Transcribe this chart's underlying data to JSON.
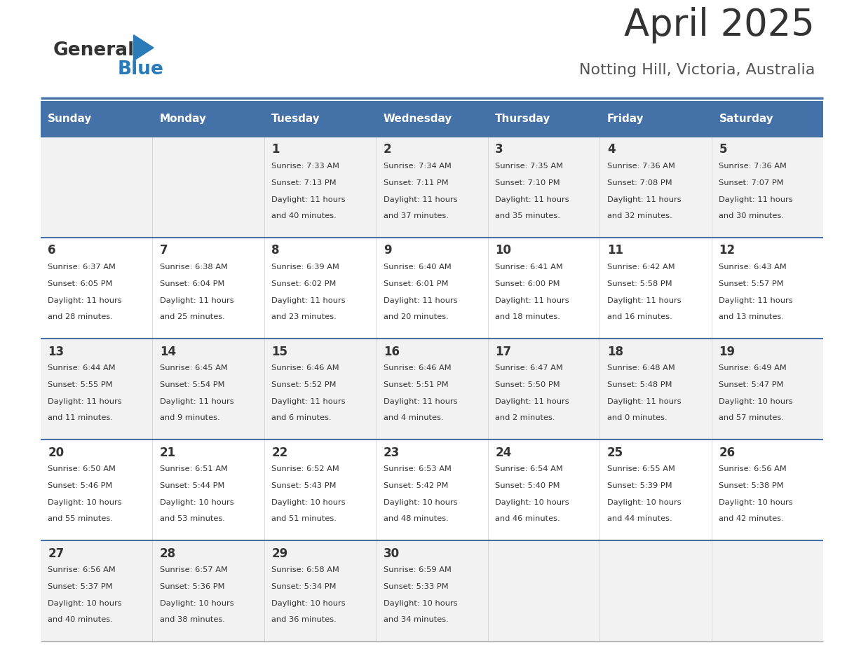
{
  "title": "April 2025",
  "subtitle": "Notting Hill, Victoria, Australia",
  "days_of_week": [
    "Sunday",
    "Monday",
    "Tuesday",
    "Wednesday",
    "Thursday",
    "Friday",
    "Saturday"
  ],
  "header_bg": "#4472A8",
  "header_text": "#FFFFFF",
  "row_bg_odd": "#F2F2F2",
  "row_bg_even": "#FFFFFF",
  "cell_text": "#333333",
  "divider_color": "#4472A8",
  "title_color": "#333333",
  "subtitle_color": "#555555",
  "logo_general_color": "#333333",
  "logo_blue_color": "#2B7BB9",
  "weeks": [
    {
      "days": [
        {
          "date": "",
          "sunrise": "",
          "sunset": "",
          "daylight": ""
        },
        {
          "date": "",
          "sunrise": "",
          "sunset": "",
          "daylight": ""
        },
        {
          "date": "1",
          "sunrise": "Sunrise: 7:33 AM",
          "sunset": "Sunset: 7:13 PM",
          "daylight": "Daylight: 11 hours\nand 40 minutes."
        },
        {
          "date": "2",
          "sunrise": "Sunrise: 7:34 AM",
          "sunset": "Sunset: 7:11 PM",
          "daylight": "Daylight: 11 hours\nand 37 minutes."
        },
        {
          "date": "3",
          "sunrise": "Sunrise: 7:35 AM",
          "sunset": "Sunset: 7:10 PM",
          "daylight": "Daylight: 11 hours\nand 35 minutes."
        },
        {
          "date": "4",
          "sunrise": "Sunrise: 7:36 AM",
          "sunset": "Sunset: 7:08 PM",
          "daylight": "Daylight: 11 hours\nand 32 minutes."
        },
        {
          "date": "5",
          "sunrise": "Sunrise: 7:36 AM",
          "sunset": "Sunset: 7:07 PM",
          "daylight": "Daylight: 11 hours\nand 30 minutes."
        }
      ]
    },
    {
      "days": [
        {
          "date": "6",
          "sunrise": "Sunrise: 6:37 AM",
          "sunset": "Sunset: 6:05 PM",
          "daylight": "Daylight: 11 hours\nand 28 minutes."
        },
        {
          "date": "7",
          "sunrise": "Sunrise: 6:38 AM",
          "sunset": "Sunset: 6:04 PM",
          "daylight": "Daylight: 11 hours\nand 25 minutes."
        },
        {
          "date": "8",
          "sunrise": "Sunrise: 6:39 AM",
          "sunset": "Sunset: 6:02 PM",
          "daylight": "Daylight: 11 hours\nand 23 minutes."
        },
        {
          "date": "9",
          "sunrise": "Sunrise: 6:40 AM",
          "sunset": "Sunset: 6:01 PM",
          "daylight": "Daylight: 11 hours\nand 20 minutes."
        },
        {
          "date": "10",
          "sunrise": "Sunrise: 6:41 AM",
          "sunset": "Sunset: 6:00 PM",
          "daylight": "Daylight: 11 hours\nand 18 minutes."
        },
        {
          "date": "11",
          "sunrise": "Sunrise: 6:42 AM",
          "sunset": "Sunset: 5:58 PM",
          "daylight": "Daylight: 11 hours\nand 16 minutes."
        },
        {
          "date": "12",
          "sunrise": "Sunrise: 6:43 AM",
          "sunset": "Sunset: 5:57 PM",
          "daylight": "Daylight: 11 hours\nand 13 minutes."
        }
      ]
    },
    {
      "days": [
        {
          "date": "13",
          "sunrise": "Sunrise: 6:44 AM",
          "sunset": "Sunset: 5:55 PM",
          "daylight": "Daylight: 11 hours\nand 11 minutes."
        },
        {
          "date": "14",
          "sunrise": "Sunrise: 6:45 AM",
          "sunset": "Sunset: 5:54 PM",
          "daylight": "Daylight: 11 hours\nand 9 minutes."
        },
        {
          "date": "15",
          "sunrise": "Sunrise: 6:46 AM",
          "sunset": "Sunset: 5:52 PM",
          "daylight": "Daylight: 11 hours\nand 6 minutes."
        },
        {
          "date": "16",
          "sunrise": "Sunrise: 6:46 AM",
          "sunset": "Sunset: 5:51 PM",
          "daylight": "Daylight: 11 hours\nand 4 minutes."
        },
        {
          "date": "17",
          "sunrise": "Sunrise: 6:47 AM",
          "sunset": "Sunset: 5:50 PM",
          "daylight": "Daylight: 11 hours\nand 2 minutes."
        },
        {
          "date": "18",
          "sunrise": "Sunrise: 6:48 AM",
          "sunset": "Sunset: 5:48 PM",
          "daylight": "Daylight: 11 hours\nand 0 minutes."
        },
        {
          "date": "19",
          "sunrise": "Sunrise: 6:49 AM",
          "sunset": "Sunset: 5:47 PM",
          "daylight": "Daylight: 10 hours\nand 57 minutes."
        }
      ]
    },
    {
      "days": [
        {
          "date": "20",
          "sunrise": "Sunrise: 6:50 AM",
          "sunset": "Sunset: 5:46 PM",
          "daylight": "Daylight: 10 hours\nand 55 minutes."
        },
        {
          "date": "21",
          "sunrise": "Sunrise: 6:51 AM",
          "sunset": "Sunset: 5:44 PM",
          "daylight": "Daylight: 10 hours\nand 53 minutes."
        },
        {
          "date": "22",
          "sunrise": "Sunrise: 6:52 AM",
          "sunset": "Sunset: 5:43 PM",
          "daylight": "Daylight: 10 hours\nand 51 minutes."
        },
        {
          "date": "23",
          "sunrise": "Sunrise: 6:53 AM",
          "sunset": "Sunset: 5:42 PM",
          "daylight": "Daylight: 10 hours\nand 48 minutes."
        },
        {
          "date": "24",
          "sunrise": "Sunrise: 6:54 AM",
          "sunset": "Sunset: 5:40 PM",
          "daylight": "Daylight: 10 hours\nand 46 minutes."
        },
        {
          "date": "25",
          "sunrise": "Sunrise: 6:55 AM",
          "sunset": "Sunset: 5:39 PM",
          "daylight": "Daylight: 10 hours\nand 44 minutes."
        },
        {
          "date": "26",
          "sunrise": "Sunrise: 6:56 AM",
          "sunset": "Sunset: 5:38 PM",
          "daylight": "Daylight: 10 hours\nand 42 minutes."
        }
      ]
    },
    {
      "days": [
        {
          "date": "27",
          "sunrise": "Sunrise: 6:56 AM",
          "sunset": "Sunset: 5:37 PM",
          "daylight": "Daylight: 10 hours\nand 40 minutes."
        },
        {
          "date": "28",
          "sunrise": "Sunrise: 6:57 AM",
          "sunset": "Sunset: 5:36 PM",
          "daylight": "Daylight: 10 hours\nand 38 minutes."
        },
        {
          "date": "29",
          "sunrise": "Sunrise: 6:58 AM",
          "sunset": "Sunset: 5:34 PM",
          "daylight": "Daylight: 10 hours\nand 36 minutes."
        },
        {
          "date": "30",
          "sunrise": "Sunrise: 6:59 AM",
          "sunset": "Sunset: 5:33 PM",
          "daylight": "Daylight: 10 hours\nand 34 minutes."
        },
        {
          "date": "",
          "sunrise": "",
          "sunset": "",
          "daylight": ""
        },
        {
          "date": "",
          "sunrise": "",
          "sunset": "",
          "daylight": ""
        },
        {
          "date": "",
          "sunrise": "",
          "sunset": "",
          "daylight": ""
        }
      ]
    }
  ]
}
